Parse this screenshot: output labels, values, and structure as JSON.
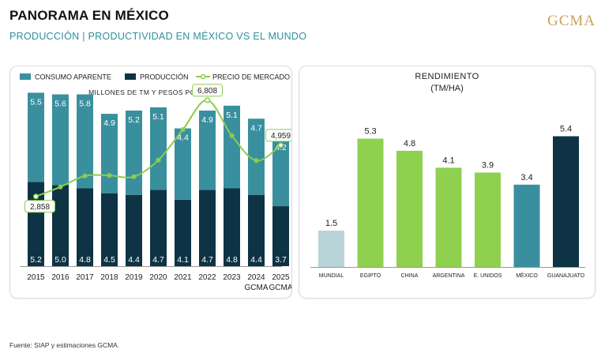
{
  "header": {
    "title": "PANORAMA EN MÉXICO",
    "subtitle": "PRODUCCIÓN | PRODUCTIVIDAD EN MÉXICO VS EL MUNDO",
    "logo": "GCMA"
  },
  "footer": {
    "source": "Fuente: SIAP y estimaciones GCMA."
  },
  "colors": {
    "consumo": "#3a8f9e",
    "produccion": "#0d3344",
    "precio": "#8ccc4e",
    "mundial": "#b9d4d8",
    "paises": "#8fd14f",
    "mexico": "#3a8f9e",
    "guanajuato": "#0d3344"
  },
  "chart_data": [
    {
      "type": "bar",
      "subtype": "stacked bar + line",
      "title": "MILLONES DE TM Y PESOS POR TM",
      "legend": [
        "CONSUMO APARENTE",
        "PRODUCCIÓN",
        "PRECIO DE MERCADO"
      ],
      "legend_position": "top",
      "categories": [
        "2015",
        "2016",
        "2017",
        "2018",
        "2019",
        "2020",
        "2021",
        "2022",
        "2023",
        "2024\nGCMA",
        "2025\nGCMA"
      ],
      "series": [
        {
          "name": "PRODUCCIÓN",
          "values": [
            5.2,
            5.0,
            4.8,
            4.5,
            4.4,
            4.7,
            4.1,
            4.7,
            4.8,
            4.4,
            3.7
          ]
        },
        {
          "name": "CONSUMO APARENTE",
          "values": [
            5.5,
            5.6,
            5.8,
            4.9,
            5.2,
            5.1,
            4.4,
            4.9,
            5.1,
            4.7,
            4.2
          ]
        },
        {
          "name": "PRECIO DE MERCADO",
          "values": [
            2858,
            3250,
            3700,
            3720,
            3670,
            4350,
            5600,
            6808,
            5350,
            4330,
            4959
          ],
          "labeled": {
            "0": "2,858",
            "7": "6,808",
            "10": "4,959"
          }
        }
      ],
      "ylim": [
        0,
        11.5
      ],
      "price_range": [
        0,
        8000
      ],
      "grid": false
    },
    {
      "type": "bar",
      "title": "RENDIMIENTO",
      "subtitle": "(TM/HA)",
      "categories": [
        "MUNDIAL",
        "EGIPTO",
        "CHINA",
        "ARGENTINA",
        "E. UNIDOS",
        "MÉXICO",
        "GUANAJUATO"
      ],
      "values": [
        1.5,
        5.3,
        4.8,
        4.1,
        3.9,
        3.4,
        5.4
      ],
      "ylim": [
        0,
        6.2
      ],
      "grid": false
    }
  ]
}
